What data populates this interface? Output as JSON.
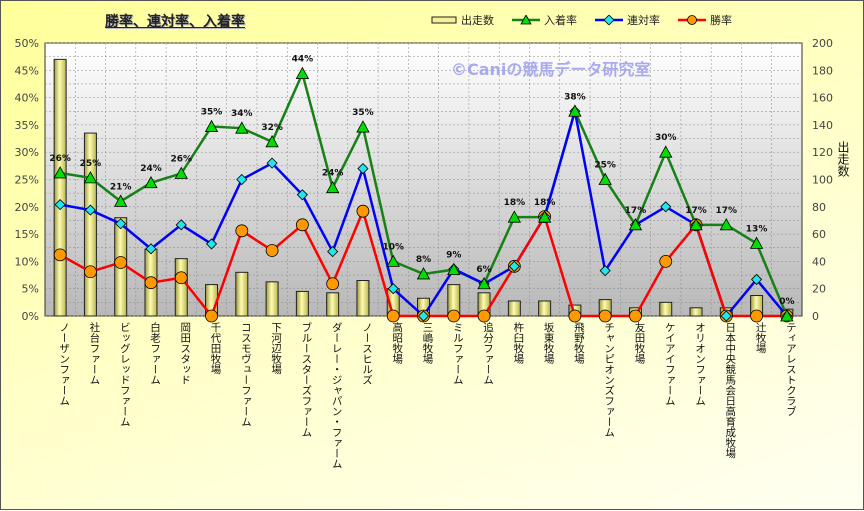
{
  "chart_data": {
    "type": "bar+line",
    "title": "勝率、連対率、入着率",
    "watermark": "©Caniの競馬データ研究室",
    "categories": [
      "ノーザンファーム",
      "社台ファーム",
      "ビッグレッドファーム",
      "白老ファーム",
      "岡田スタッド",
      "千代田牧場",
      "コスモヴューファーム",
      "下河辺牧場",
      "ブルースターズファーム",
      "ダーレー・ジャパン・ファーム",
      "ノースヒルズ",
      "高昭牧場",
      "三嶋牧場",
      "ミルファーム",
      "追分ファーム",
      "杵臼牧場",
      "坂東牧場",
      "飛野牧場",
      "チャンピオンズファーム",
      "友田牧場",
      "ケイアイファーム",
      "オリオンファーム",
      "日本中央競馬会日高育成牧場",
      "辻牧場",
      "ティアレストクラブ"
    ],
    "y_left": {
      "ticks": [
        "0%",
        "5%",
        "10%",
        "15%",
        "20%",
        "25%",
        "30%",
        "35%",
        "40%",
        "45%",
        "50%"
      ],
      "range": [
        0,
        50
      ]
    },
    "y_right": {
      "label": "出走数",
      "ticks": [
        "0",
        "20",
        "40",
        "60",
        "80",
        "100",
        "120",
        "140",
        "160",
        "180",
        "200"
      ],
      "range": [
        0,
        200
      ]
    },
    "grid": true,
    "legend_position": "top-right",
    "series": [
      {
        "name": "出走数",
        "type": "bar",
        "axis": "right",
        "color": "#f5f09a",
        "values": [
          188,
          134,
          72,
          49,
          42,
          23,
          32,
          25,
          18,
          17,
          26,
          20,
          13,
          23,
          17,
          11,
          11,
          8,
          12,
          6,
          10,
          6,
          6,
          15,
          5
        ]
      },
      {
        "name": "入着率",
        "type": "line",
        "axis": "left",
        "color": "#178017",
        "marker": "triangle",
        "marker_color": "#00dd00",
        "values": [
          26.2,
          25.3,
          21,
          24.4,
          26.1,
          34.7,
          34.4,
          31.9,
          44.4,
          23.5,
          34.6,
          10,
          7.7,
          8.5,
          5.9,
          18.1,
          18.1,
          37.5,
          25,
          16.7,
          30,
          16.7,
          16.7,
          13.3,
          0
        ],
        "labels": [
          "26%",
          "25%",
          "21%",
          "24%",
          "26%",
          "35%",
          "34%",
          "32%",
          "44%",
          "24%",
          "35%",
          "10%",
          "8%",
          "9%",
          "6%",
          "18%",
          "18%",
          "38%",
          "25%",
          "17%",
          "30%",
          "17%",
          "17%",
          "13%",
          "0%"
        ]
      },
      {
        "name": "連対率",
        "type": "line",
        "axis": "left",
        "color": "#0000ff",
        "marker": "diamond",
        "marker_color": "#22e5ee",
        "values": [
          20.4,
          19.4,
          16.9,
          12.3,
          16.7,
          13.2,
          25,
          28,
          22.2,
          11.8,
          27,
          5,
          0,
          8.6,
          5.9,
          9.1,
          18.2,
          37.5,
          8.3,
          16.7,
          20,
          16.7,
          0,
          6.7,
          0
        ]
      },
      {
        "name": "勝率",
        "type": "line",
        "axis": "left",
        "color": "#ff0000",
        "marker": "circle",
        "marker_color": "#ff9900",
        "values": [
          11.2,
          8.1,
          9.8,
          6.1,
          7,
          0,
          15.6,
          12,
          16.7,
          5.9,
          19.2,
          0,
          0,
          0,
          0,
          9.1,
          18.2,
          0,
          0,
          0,
          10,
          16.7,
          0,
          0,
          0
        ]
      }
    ]
  }
}
